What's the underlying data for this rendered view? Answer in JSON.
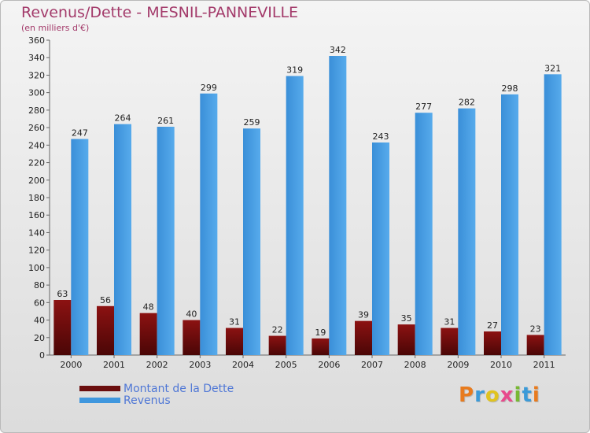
{
  "chart_data": {
    "type": "bar",
    "title": "Revenus/Dette - MESNIL-PANNEVILLE",
    "subtitle": "(en milliers d'€)",
    "categories": [
      "2000",
      "2001",
      "2002",
      "2003",
      "2004",
      "2005",
      "2006",
      "2007",
      "2008",
      "2009",
      "2010",
      "2011"
    ],
    "series": [
      {
        "name": "Montant de la Dette",
        "color": "#6b0e0e",
        "values": [
          63,
          56,
          48,
          40,
          31,
          22,
          19,
          39,
          35,
          31,
          27,
          23
        ]
      },
      {
        "name": "Revenus",
        "color": "#3f97de",
        "values": [
          247,
          264,
          261,
          299,
          259,
          319,
          342,
          243,
          277,
          282,
          298,
          321
        ]
      }
    ],
    "ylim": [
      0,
      360
    ],
    "ytick_step": 20,
    "grid": false,
    "legend": "bottom-left"
  },
  "brand": {
    "letters": [
      "P",
      "r",
      "o",
      "x",
      "i",
      "t",
      "i"
    ],
    "colors": [
      "#e87b1e",
      "#3b9ad8",
      "#e0c320",
      "#e84a8c",
      "#78b833",
      "#3b9ad8",
      "#e87b1e"
    ]
  }
}
